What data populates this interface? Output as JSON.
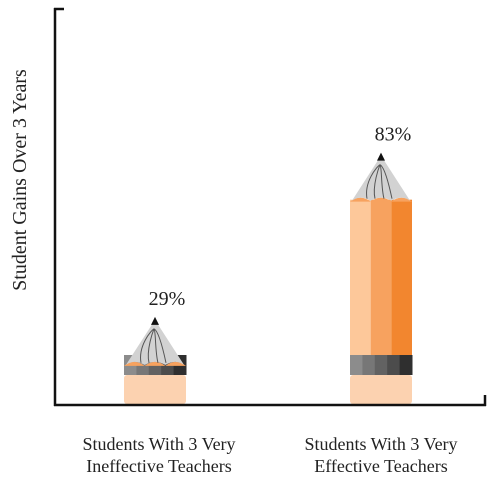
{
  "chart_data": {
    "type": "bar",
    "title": "",
    "xlabel": "",
    "ylabel": "Student Gains Over 3 Years",
    "categories": [
      [
        "Students With 3 Very",
        "Ineffective Teachers"
      ],
      [
        "Students With 3 Very",
        "Effective Teachers"
      ]
    ],
    "values": [
      29,
      83
    ],
    "data_labels": [
      "29%",
      "83%"
    ],
    "ylim": [
      0,
      100
    ],
    "grid": false,
    "legend": "none",
    "colors": {
      "wood": "#f2c49b",
      "light_stripe": "#fdc89a",
      "mid_stripe": "#f7a25f",
      "dark_stripe": "#f2862f",
      "tip_cone": "#d2d2d2",
      "lead": "#111111",
      "ferrule": [
        "#8c8c8c",
        "#777777",
        "#626262",
        "#4c4c4c",
        "#2f2f2f"
      ],
      "eraser": "#fcd2b0",
      "axis": "#111111"
    }
  }
}
